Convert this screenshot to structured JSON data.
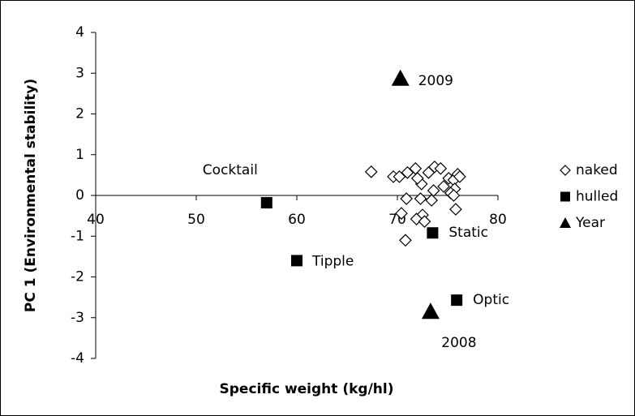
{
  "chart_data": {
    "type": "scatter",
    "x_label": "Specific weight (kg/hl)",
    "y_label": "PC 1 (Environmental stability)",
    "xlim": [
      40,
      80
    ],
    "xticks": [
      40,
      50,
      60,
      70,
      80
    ],
    "ylim": [
      -4,
      4
    ],
    "yticks": [
      -4,
      -3,
      -2,
      -1,
      0,
      1,
      2,
      3,
      4
    ],
    "grid": false,
    "legend": "right",
    "series": [
      {
        "name": "naked",
        "marker": "diamond",
        "color": "#000000",
        "x": [
          67.4,
          69.6,
          70.2,
          71.0,
          71.8,
          73.1,
          73.7,
          74.3,
          75.1,
          75.6,
          76.0,
          76.2,
          75.7,
          75.3,
          74.6,
          73.6,
          72.4,
          70.9,
          72.3,
          73.4,
          75.6,
          75.8,
          70.4,
          72.5,
          71.9,
          72.7,
          70.8,
          72.0
        ],
        "values": [
          0.58,
          0.46,
          0.46,
          0.56,
          0.66,
          0.56,
          0.7,
          0.66,
          0.42,
          0.38,
          0.52,
          0.46,
          0.16,
          0.06,
          0.22,
          0.12,
          0.28,
          -0.08,
          -0.08,
          -0.12,
          0.0,
          -0.34,
          -0.44,
          -0.48,
          -0.58,
          -0.64,
          -1.1,
          0.42
        ]
      },
      {
        "name": "hulled",
        "marker": "square",
        "color": "#000000",
        "x": [
          57.0,
          60.0,
          73.5,
          75.9
        ],
        "values": [
          -0.18,
          -1.6,
          -0.92,
          -2.57
        ],
        "labels": [
          "Cocktail",
          "Tipple",
          "Static",
          "Optic"
        ]
      },
      {
        "name": "Year",
        "marker": "triangle",
        "color": "#000000",
        "x": [
          70.3,
          73.3
        ],
        "values": [
          2.87,
          -2.85
        ],
        "labels": [
          "2009",
          "2008"
        ]
      }
    ]
  }
}
